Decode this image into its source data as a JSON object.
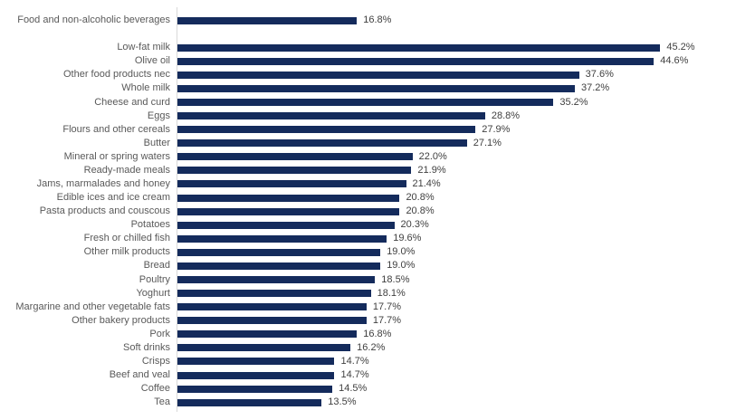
{
  "chart_data": {
    "type": "bar",
    "orientation": "horizontal",
    "title": "",
    "xlabel": "",
    "ylabel": "",
    "unit": "%",
    "xlim": [
      0,
      50
    ],
    "grid": false,
    "legend": false,
    "gap_after_index": 0,
    "bar_color": "#142B5C",
    "axis_line_color": "#D9D9D9",
    "category_label_color": "#595959",
    "value_label_color": "#404040",
    "categories": [
      "Food and non-alcoholic beverages",
      "Low-fat milk",
      "Olive oil",
      "Other food products nec",
      "Whole milk",
      "Cheese and curd",
      "Eggs",
      "Flours and other cereals",
      "Butter",
      "Mineral or spring waters",
      "Ready-made meals",
      "Jams, marmalades and honey",
      "Edible ices and ice cream",
      "Pasta products and couscous",
      "Potatoes",
      "Fresh or chilled fish",
      "Other milk products",
      "Bread",
      "Poultry",
      "Yoghurt",
      "Margarine and other vegetable fats",
      "Other bakery products",
      "Pork",
      "Soft drinks",
      "Crisps",
      "Beef and veal",
      "Coffee",
      "Tea"
    ],
    "values": [
      16.8,
      45.2,
      44.6,
      37.6,
      37.2,
      35.2,
      28.8,
      27.9,
      27.1,
      22.0,
      21.9,
      21.4,
      20.8,
      20.8,
      20.3,
      19.6,
      19.0,
      19.0,
      18.5,
      18.1,
      17.7,
      17.7,
      16.8,
      16.2,
      14.7,
      14.7,
      14.5,
      13.5
    ],
    "value_labels": [
      "16.8%",
      "45.2%",
      "44.6%",
      "37.6%",
      "37.2%",
      "35.2%",
      "28.8%",
      "27.9%",
      "27.1%",
      "22.0%",
      "21.9%",
      "21.4%",
      "20.8%",
      "20.8%",
      "20.3%",
      "19.6%",
      "19.0%",
      "19.0%",
      "18.5%",
      "18.1%",
      "17.7%",
      "17.7%",
      "16.8%",
      "16.2%",
      "14.7%",
      "14.7%",
      "14.5%",
      "13.5%"
    ]
  }
}
